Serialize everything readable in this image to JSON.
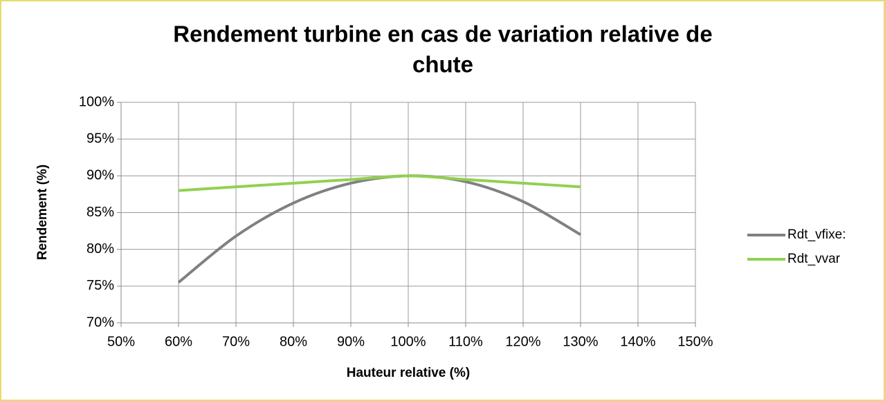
{
  "chart_data": {
    "type": "line",
    "title": [
      "Rendement  turbine en cas de variation relative de",
      "chute"
    ],
    "x_label": "Hauteur relative (%)",
    "y_label": "Rendement (%)",
    "x": [
      60,
      70,
      80,
      90,
      100,
      110,
      120,
      130
    ],
    "series": [
      {
        "name": "Rdt_vfixe:",
        "color": "#808080",
        "values": [
          75.5,
          81.8,
          86.3,
          89.0,
          90.0,
          89.2,
          86.5,
          82.0
        ]
      },
      {
        "name": "Rdt_vvar",
        "color": "#92d050",
        "values": [
          88.0,
          88.5,
          89.0,
          89.5,
          90.0,
          89.5,
          89.0,
          88.5
        ]
      }
    ],
    "xlim": [
      50,
      150
    ],
    "xticks": [
      {
        "value": 50,
        "label": "50%"
      },
      {
        "value": 60,
        "label": "60%"
      },
      {
        "value": 70,
        "label": "70%"
      },
      {
        "value": 80,
        "label": "80%"
      },
      {
        "value": 90,
        "label": "90%"
      },
      {
        "value": 100,
        "label": "100%"
      },
      {
        "value": 110,
        "label": "110%"
      },
      {
        "value": 120,
        "label": "120%"
      },
      {
        "value": 130,
        "label": "130%"
      },
      {
        "value": 140,
        "label": "140%"
      },
      {
        "value": 150,
        "label": "150%"
      }
    ],
    "ylim": [
      70,
      100
    ],
    "yticks": [
      {
        "value": 70,
        "label": "70%"
      },
      {
        "value": 75,
        "label": "75%"
      },
      {
        "value": 80,
        "label": "80%"
      },
      {
        "value": 85,
        "label": "85%"
      },
      {
        "value": 90,
        "label": "90%"
      },
      {
        "value": 95,
        "label": "95%"
      },
      {
        "value": 100,
        "label": "100%"
      }
    ],
    "grid": true,
    "legend": "right"
  }
}
